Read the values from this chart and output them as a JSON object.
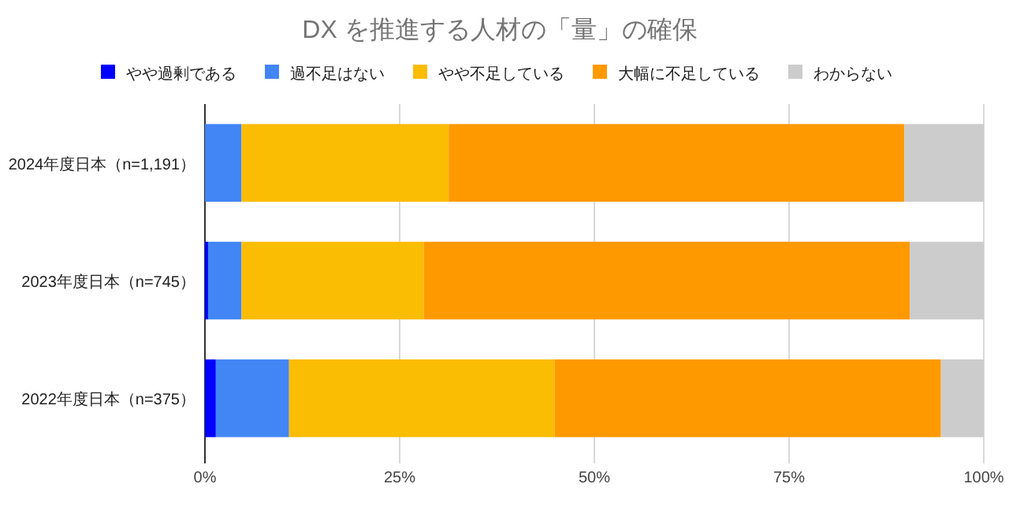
{
  "chart_data": {
    "type": "bar",
    "title": "DX を推進する人材の「量」の確保",
    "orientation": "horizontal",
    "stacked": true,
    "categories": [
      "2024年度日本（n=1,191）",
      "2023年度日本（n=745）",
      "2022年度日本（n=375）"
    ],
    "series": [
      {
        "name": "やや過剰である",
        "color": "#0000ff",
        "values": [
          0,
          0.4,
          1.4
        ]
      },
      {
        "name": "過不足はない",
        "color": "#4285f4",
        "values": [
          4.7,
          4.3,
          9.4
        ]
      },
      {
        "name": "やや不足している",
        "color": "#fbbc04",
        "values": [
          26.6,
          23.4,
          34.1
        ]
      },
      {
        "name": "大幅に不足している",
        "color": "#ff9900",
        "values": [
          58.5,
          62.4,
          49.6
        ]
      },
      {
        "name": "わからない",
        "color": "#cccccc",
        "values": [
          10.2,
          9.5,
          5.5
        ]
      }
    ],
    "xlim": [
      0,
      100
    ],
    "xticks": [
      {
        "value": 0,
        "label": "0%"
      },
      {
        "value": 25,
        "label": "25%"
      },
      {
        "value": 50,
        "label": "50%"
      },
      {
        "value": 75,
        "label": "75%"
      },
      {
        "value": 100,
        "label": "100%"
      }
    ],
    "grid": "x",
    "legend": "top"
  }
}
